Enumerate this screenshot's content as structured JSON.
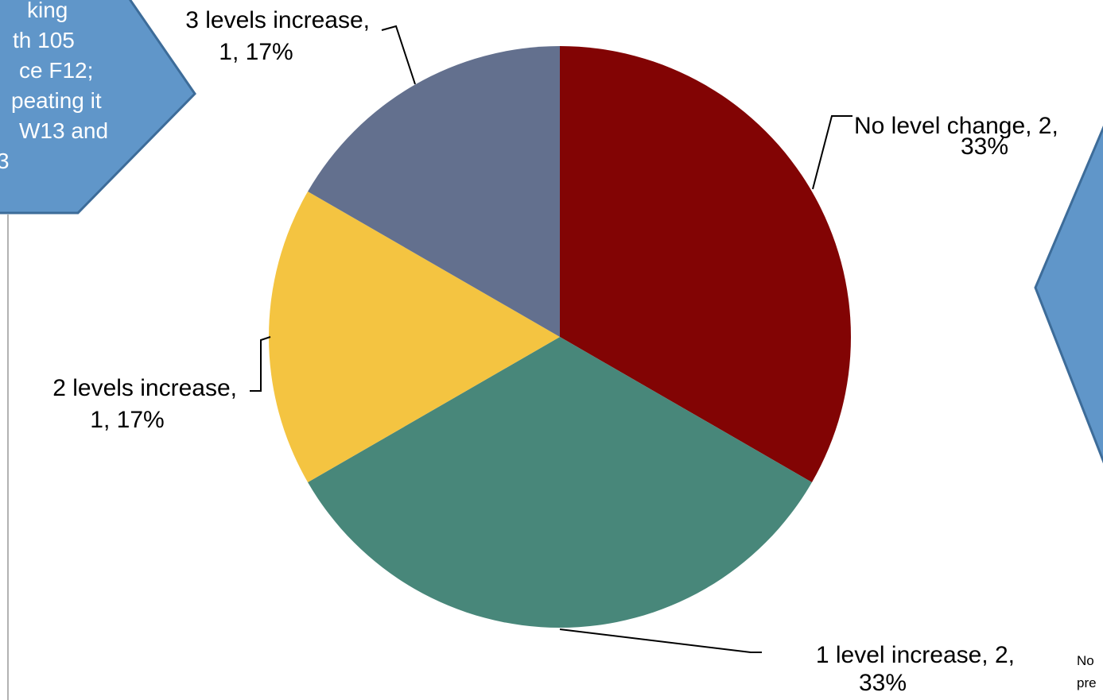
{
  "colors": {
    "callout_fill": "#6096c9",
    "callout_stroke": "#3d6c99",
    "leader_line": "#000000"
  },
  "left_callout": {
    "lines": [
      "king",
      "th 105",
      "ce F12;",
      "peating it",
      "W13 and",
      "3"
    ]
  },
  "right_note": {
    "lines": [
      "No",
      "pre"
    ]
  },
  "chart_data": {
    "type": "pie",
    "title": "",
    "start_angle_deg": 0,
    "direction": "clockwise",
    "slices": [
      {
        "label": "No level change",
        "value": 2,
        "percent": "33%",
        "color": "#820404",
        "text_lines": [
          "No level change, 2,",
          "33%"
        ]
      },
      {
        "label": "1 level increase",
        "value": 2,
        "percent": "33%",
        "color": "#48877a",
        "text_lines": [
          "1 level increase,  2,",
          "33%"
        ]
      },
      {
        "label": "2 levels increase",
        "value": 1,
        "percent": "17%",
        "color": "#f4c441",
        "text_lines": [
          "2 levels increase,",
          "1, 17%"
        ]
      },
      {
        "label": "3 levels increase",
        "value": 1,
        "percent": "17%",
        "color": "#63708e",
        "text_lines": [
          "3 levels increase,",
          "1, 17%"
        ]
      }
    ]
  }
}
